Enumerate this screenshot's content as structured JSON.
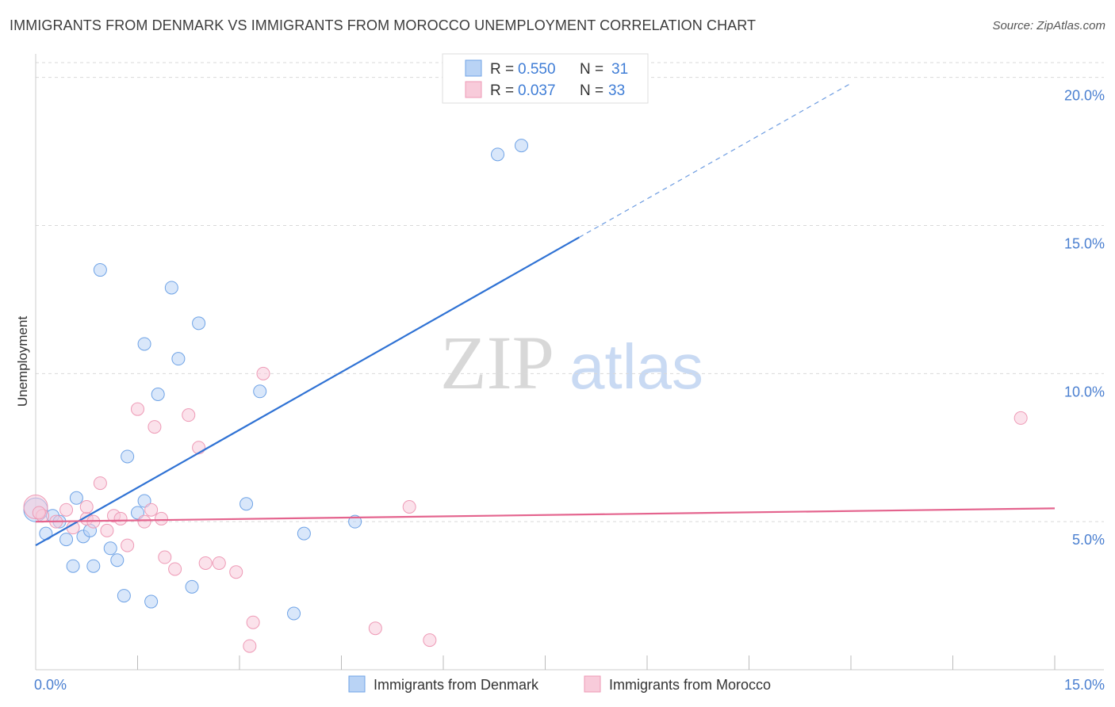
{
  "title": "IMMIGRANTS FROM DENMARK VS IMMIGRANTS FROM MOROCCO UNEMPLOYMENT CORRELATION CHART",
  "source": "Source: ZipAtlas.com",
  "watermark": {
    "zip": "ZIP",
    "atlas": "atlas"
  },
  "chart_data": {
    "type": "scatter",
    "ylabel": "Unemployment",
    "xlabel": "",
    "xlim": [
      0,
      15
    ],
    "ylim": [
      0,
      20.5
    ],
    "x_ticks": [
      {
        "value": 0,
        "label": "0.0%"
      },
      {
        "value": 15,
        "label": "15.0%"
      }
    ],
    "y_ticks": [
      {
        "value": 5,
        "label": "5.0%"
      },
      {
        "value": 10,
        "label": "10.0%"
      },
      {
        "value": 15,
        "label": "15.0%"
      },
      {
        "value": 20,
        "label": "20.0%"
      }
    ],
    "legend": [
      {
        "r_label": "R =",
        "r_value": "0.550",
        "n_label": "N =",
        "n_value": "31"
      },
      {
        "r_label": "R =",
        "r_value": "0.037",
        "n_label": "N =",
        "n_value": "33"
      }
    ],
    "series": [
      {
        "name": "Immigrants from Denmark",
        "color": "#6fa3e6",
        "fill": "#b9d3f5",
        "trend_color": "#2f72d4",
        "trend": {
          "x0": 0,
          "y0": 4.2,
          "x1": 8.0,
          "y1": 14.6,
          "dash_x1": 12.0,
          "dash_y1": 19.8
        },
        "points": [
          [
            0.0,
            5.4
          ],
          [
            0.15,
            4.6
          ],
          [
            0.25,
            5.2
          ],
          [
            0.35,
            5.0
          ],
          [
            0.45,
            4.4
          ],
          [
            0.55,
            3.5
          ],
          [
            0.6,
            5.8
          ],
          [
            0.7,
            4.5
          ],
          [
            0.8,
            4.7
          ],
          [
            0.85,
            3.5
          ],
          [
            0.95,
            13.5
          ],
          [
            1.1,
            4.1
          ],
          [
            1.2,
            3.7
          ],
          [
            1.3,
            2.5
          ],
          [
            1.35,
            7.2
          ],
          [
            1.5,
            5.3
          ],
          [
            1.6,
            5.7
          ],
          [
            1.6,
            11.0
          ],
          [
            1.7,
            2.3
          ],
          [
            1.8,
            9.3
          ],
          [
            2.0,
            12.9
          ],
          [
            2.1,
            10.5
          ],
          [
            2.3,
            2.8
          ],
          [
            2.4,
            11.7
          ],
          [
            3.1,
            5.6
          ],
          [
            3.3,
            9.4
          ],
          [
            3.8,
            1.9
          ],
          [
            3.95,
            4.6
          ],
          [
            4.7,
            5.0
          ],
          [
            6.8,
            17.4
          ],
          [
            7.15,
            17.7
          ]
        ]
      },
      {
        "name": "Immigrants from Morocco",
        "color": "#ee9ab6",
        "fill": "#f8cbda",
        "trend_color": "#e4648e",
        "trend": {
          "x0": 0,
          "y0": 5.0,
          "x1": 15.0,
          "y1": 5.45
        },
        "points": [
          [
            0.0,
            5.5
          ],
          [
            0.1,
            5.2
          ],
          [
            0.3,
            5.0
          ],
          [
            0.45,
            5.4
          ],
          [
            0.55,
            4.8
          ],
          [
            0.75,
            5.1
          ],
          [
            0.75,
            5.5
          ],
          [
            0.85,
            5.0
          ],
          [
            0.95,
            6.3
          ],
          [
            1.05,
            4.7
          ],
          [
            1.15,
            5.2
          ],
          [
            1.25,
            5.1
          ],
          [
            1.35,
            4.2
          ],
          [
            1.5,
            8.8
          ],
          [
            1.6,
            5.0
          ],
          [
            1.7,
            5.4
          ],
          [
            1.75,
            8.2
          ],
          [
            1.85,
            5.1
          ],
          [
            1.9,
            3.8
          ],
          [
            2.05,
            3.4
          ],
          [
            2.25,
            8.6
          ],
          [
            2.4,
            7.5
          ],
          [
            2.5,
            3.6
          ],
          [
            2.7,
            3.6
          ],
          [
            2.95,
            3.3
          ],
          [
            3.15,
            0.8
          ],
          [
            3.2,
            1.6
          ],
          [
            3.35,
            10.0
          ],
          [
            5.0,
            1.4
          ],
          [
            5.5,
            5.5
          ],
          [
            5.8,
            1.0
          ],
          [
            14.5,
            8.5
          ],
          [
            0.05,
            5.3
          ]
        ]
      }
    ]
  }
}
